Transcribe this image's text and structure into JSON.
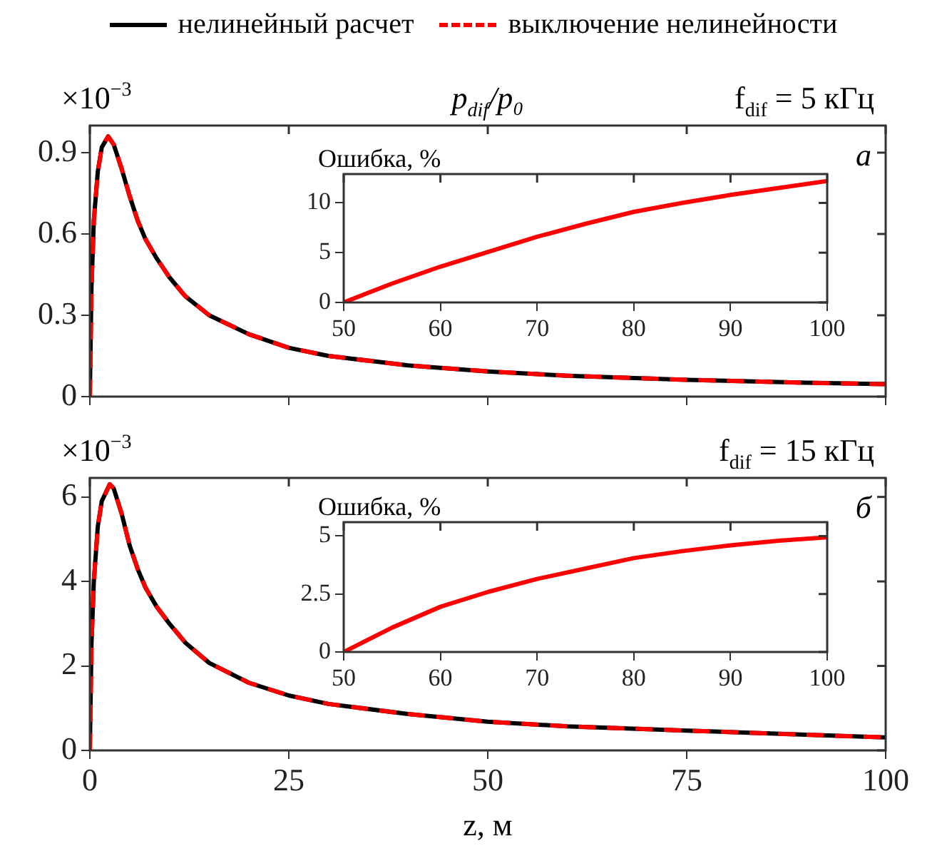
{
  "chart_data": [
    {
      "type": "line",
      "title": "p$_{dif}$/p₀",
      "annotations": [
        "×10$^{−3}$",
        "f$_{dif}$ = 5 кГц",
        "а"
      ],
      "legend": "top",
      "tick_labels": "y",
      "grid": false,
      "x": [
        0,
        0.2,
        0.5,
        1,
        1.5,
        2.3,
        3,
        4,
        5,
        6,
        7,
        8.4,
        10,
        12,
        15,
        20,
        25,
        30,
        40,
        50,
        60,
        75,
        90,
        100
      ],
      "xlim": [
        0,
        100
      ],
      "xticks": [
        0,
        25,
        50,
        75,
        100
      ],
      "ylim": [
        0,
        1.0
      ],
      "yticks": [
        0,
        0.3,
        0.6,
        0.9
      ],
      "series": [
        {
          "name": "нелинейный расчет",
          "color": "#000000",
          "line_style": "solid",
          "values": [
            0,
            0.4,
            0.65,
            0.83,
            0.92,
            0.96,
            0.93,
            0.84,
            0.74,
            0.65,
            0.58,
            0.51,
            0.44,
            0.37,
            0.3,
            0.23,
            0.18,
            0.15,
            0.115,
            0.093,
            0.077,
            0.062,
            0.051,
            0.046
          ]
        },
        {
          "name": "выключение нелинейности",
          "color": "#ff0000",
          "line_style": "dashed",
          "values": [
            0,
            0.4,
            0.65,
            0.83,
            0.92,
            0.96,
            0.93,
            0.84,
            0.74,
            0.65,
            0.58,
            0.51,
            0.44,
            0.37,
            0.3,
            0.23,
            0.18,
            0.15,
            0.115,
            0.093,
            0.077,
            0.062,
            0.051,
            0.046
          ]
        }
      ]
    },
    {
      "type": "line",
      "title": "Ошибка, %",
      "grid": false,
      "x": [
        50,
        55,
        60,
        65,
        70,
        75,
        80,
        85,
        90,
        95,
        100
      ],
      "xlim": [
        50,
        100
      ],
      "xticks": [
        50,
        60,
        70,
        80,
        90,
        100
      ],
      "ylim": [
        0,
        12.9
      ],
      "yticks": [
        0,
        5,
        10
      ],
      "series": [
        {
          "color": "#ff0000",
          "line_style": "solid",
          "values": [
            0,
            1.9,
            3.6,
            5.1,
            6.6,
            7.9,
            9.1,
            10.0,
            10.8,
            11.5,
            12.2
          ]
        }
      ]
    },
    {
      "type": "line",
      "xlabel": "z, м",
      "annotations": [
        "×10$^{−3}$",
        "f$_{dif}$ = 15 кГц",
        "б"
      ],
      "grid": false,
      "x": [
        0,
        0.2,
        0.5,
        1,
        1.5,
        2.5,
        3,
        4,
        5,
        6,
        7,
        8.4,
        10,
        12,
        15,
        20,
        25,
        30,
        40,
        50,
        60,
        75,
        90,
        100
      ],
      "xlim": [
        0,
        100
      ],
      "xticks": [
        0,
        25,
        50,
        75,
        100
      ],
      "ylim": [
        0,
        6.45
      ],
      "yticks": [
        0,
        2,
        4,
        6
      ],
      "series": [
        {
          "color": "#000000",
          "line_style": "solid",
          "values": [
            0,
            2.5,
            4.0,
            5.3,
            5.9,
            6.3,
            6.2,
            5.6,
            4.85,
            4.3,
            3.85,
            3.4,
            3.0,
            2.55,
            2.07,
            1.6,
            1.3,
            1.1,
            0.86,
            0.68,
            0.57,
            0.47,
            0.37,
            0.31
          ]
        },
        {
          "color": "#ff0000",
          "line_style": "dashed",
          "values": [
            0,
            2.5,
            4.0,
            5.3,
            5.9,
            6.3,
            6.2,
            5.6,
            4.85,
            4.3,
            3.85,
            3.4,
            3.0,
            2.55,
            2.07,
            1.6,
            1.3,
            1.1,
            0.86,
            0.68,
            0.57,
            0.47,
            0.37,
            0.31
          ]
        }
      ]
    },
    {
      "type": "line",
      "title": "Ошибка, %",
      "grid": false,
      "x": [
        50,
        55,
        60,
        65,
        70,
        75,
        80,
        85,
        90,
        95,
        100
      ],
      "xlim": [
        50,
        100
      ],
      "xticks": [
        50,
        60,
        70,
        80,
        90,
        100
      ],
      "ylim": [
        0,
        5.6
      ],
      "yticks": [
        0,
        2.5,
        5
      ],
      "series": [
        {
          "color": "#ff0000",
          "line_style": "solid",
          "values": [
            0,
            1.05,
            1.95,
            2.6,
            3.15,
            3.6,
            4.05,
            4.35,
            4.6,
            4.8,
            4.95
          ]
        }
      ]
    }
  ]
}
